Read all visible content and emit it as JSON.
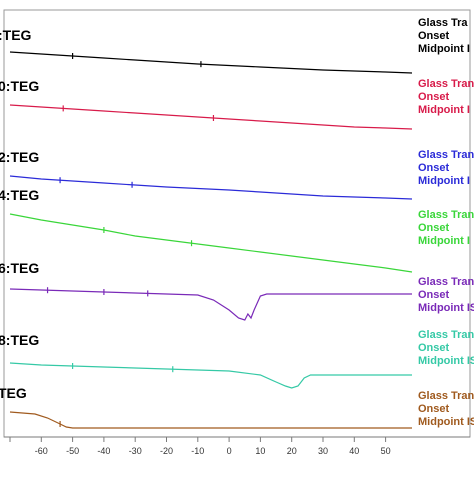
{
  "chart_data": {
    "type": "line",
    "xlabel": "",
    "ylabel": "",
    "xlim": [
      -70,
      60
    ],
    "x_ticks": [
      -70,
      -60,
      -50,
      -40,
      -30,
      -20,
      -10,
      0,
      10,
      20,
      30,
      40,
      50
    ],
    "x_tick_labels": [
      "",
      "-60",
      "-50",
      "-40",
      "-30",
      "-20",
      "-10",
      "0",
      "10",
      "20",
      "30",
      "40",
      "50"
    ],
    "series": [
      {
        "name": ":TEG",
        "color": "#000000",
        "points": [
          [
            -70,
            52
          ],
          [
            -60,
            54
          ],
          [
            -50,
            56
          ],
          [
            -40,
            58
          ],
          [
            -30,
            60
          ],
          [
            -20,
            62
          ],
          [
            -10,
            64
          ],
          [
            0,
            65.5
          ],
          [
            10,
            67
          ],
          [
            20,
            68.5
          ],
          [
            30,
            70
          ],
          [
            40,
            71
          ],
          [
            50,
            72
          ],
          [
            60,
            73
          ]
        ],
        "markers": [
          -50,
          -9
        ],
        "annotations": [
          "Glass Tra",
          "Onset",
          "Midpoint I"
        ],
        "annotation_colors": [
          "#000000",
          "#000000",
          "#000000"
        ]
      },
      {
        "name": "0:TEG",
        "color": "#d81b4a",
        "points": [
          [
            -70,
            105
          ],
          [
            -60,
            107
          ],
          [
            -50,
            109
          ],
          [
            -40,
            111
          ],
          [
            -30,
            113
          ],
          [
            -20,
            115
          ],
          [
            -10,
            117
          ],
          [
            0,
            119
          ],
          [
            10,
            121
          ],
          [
            20,
            123
          ],
          [
            30,
            125
          ],
          [
            40,
            127
          ],
          [
            50,
            128
          ],
          [
            60,
            129
          ]
        ],
        "markers": [
          -53,
          -5
        ],
        "annotations": [
          "Glass Tran",
          "Onset",
          "Midpoint I"
        ],
        "annotation_colors": [
          "#d81b4a",
          "#d81b4a",
          "#d81b4a"
        ]
      },
      {
        "name": "2:TEG",
        "color": "#2b2bd8",
        "points": [
          [
            -70,
            176
          ],
          [
            -60,
            179
          ],
          [
            -50,
            181
          ],
          [
            -40,
            183
          ],
          [
            -30,
            185
          ],
          [
            -20,
            187
          ],
          [
            -10,
            188.5
          ],
          [
            0,
            190
          ],
          [
            10,
            192
          ],
          [
            20,
            194
          ],
          [
            30,
            196
          ],
          [
            40,
            197
          ],
          [
            50,
            198
          ],
          [
            60,
            199
          ]
        ],
        "markers": [
          -54,
          -31
        ],
        "annotations": [
          "Glass Tran",
          "Onset",
          "Midpoint I"
        ],
        "annotation_colors": [
          "#2b2bd8",
          "#2b2bd8",
          "#2b2bd8"
        ]
      },
      {
        "name": "4:TEG",
        "color": "#3ad63a",
        "points": [
          [
            -70,
            214
          ],
          [
            -60,
            220
          ],
          [
            -50,
            225
          ],
          [
            -40,
            230
          ],
          [
            -30,
            236
          ],
          [
            -20,
            240
          ],
          [
            -10,
            244
          ],
          [
            0,
            248
          ],
          [
            10,
            252
          ],
          [
            20,
            256
          ],
          [
            30,
            260
          ],
          [
            40,
            264
          ],
          [
            50,
            268
          ],
          [
            60,
            272
          ]
        ],
        "markers": [
          -40,
          -12
        ],
        "annotations": [
          "Glass Tran",
          "Onset",
          "Midpoint I"
        ],
        "annotation_colors": [
          "#3ad63a",
          "#3ad63a",
          "#3ad63a"
        ]
      },
      {
        "name": "6:TEG",
        "color": "#7a2ab8",
        "points": [
          [
            -70,
            289
          ],
          [
            -60,
            290
          ],
          [
            -50,
            291
          ],
          [
            -40,
            292
          ],
          [
            -30,
            293
          ],
          [
            -20,
            294
          ],
          [
            -10,
            295
          ],
          [
            -5,
            300
          ],
          [
            0,
            310
          ],
          [
            3,
            318
          ],
          [
            5,
            320
          ],
          [
            6,
            314
          ],
          [
            7,
            318
          ],
          [
            8,
            310
          ],
          [
            10,
            296
          ],
          [
            12,
            294
          ],
          [
            20,
            294
          ],
          [
            30,
            294
          ],
          [
            40,
            294
          ],
          [
            50,
            294
          ],
          [
            60,
            294
          ]
        ],
        "markers": [
          -58,
          -40,
          -26
        ],
        "annotations": [
          "Glass Tran",
          "Onset",
          "Midpoint IS"
        ],
        "annotation_colors": [
          "#7a2ab8",
          "#7a2ab8",
          "#7a2ab8"
        ]
      },
      {
        "name": "8:TEG",
        "color": "#35c9a6",
        "points": [
          [
            -70,
            363
          ],
          [
            -60,
            365
          ],
          [
            -50,
            366
          ],
          [
            -40,
            367
          ],
          [
            -30,
            368
          ],
          [
            -20,
            369
          ],
          [
            -10,
            370
          ],
          [
            0,
            371
          ],
          [
            10,
            375
          ],
          [
            15,
            382
          ],
          [
            18,
            386
          ],
          [
            20,
            388
          ],
          [
            22,
            386
          ],
          [
            24,
            378
          ],
          [
            26,
            375
          ],
          [
            30,
            375
          ],
          [
            40,
            375
          ],
          [
            50,
            375
          ],
          [
            60,
            375
          ]
        ],
        "markers": [
          -50,
          -18
        ],
        "annotations": [
          "Glass Tran",
          "Onset",
          "Midpoint IS"
        ],
        "annotation_colors": [
          "#35c9a6",
          "#35c9a6",
          "#35c9a6"
        ]
      },
      {
        "name": "TEG",
        "color": "#a05a1e",
        "points": [
          [
            -70,
            412
          ],
          [
            -66,
            413
          ],
          [
            -62,
            414
          ],
          [
            -58,
            418
          ],
          [
            -54,
            424
          ],
          [
            -52,
            427
          ],
          [
            -50,
            428
          ],
          [
            -40,
            428
          ],
          [
            -30,
            428
          ],
          [
            -20,
            428
          ],
          [
            -10,
            428
          ],
          [
            0,
            428
          ],
          [
            10,
            428
          ],
          [
            20,
            428
          ],
          [
            30,
            428
          ],
          [
            40,
            428
          ],
          [
            50,
            428
          ],
          [
            60,
            428
          ]
        ],
        "markers": [
          -54
        ],
        "annotations": [
          "Glass Tran",
          "Onset",
          "Midpoint IS"
        ],
        "annotation_colors": [
          "#a05a1e",
          "#a05a1e",
          "#a05a1e"
        ]
      }
    ]
  }
}
